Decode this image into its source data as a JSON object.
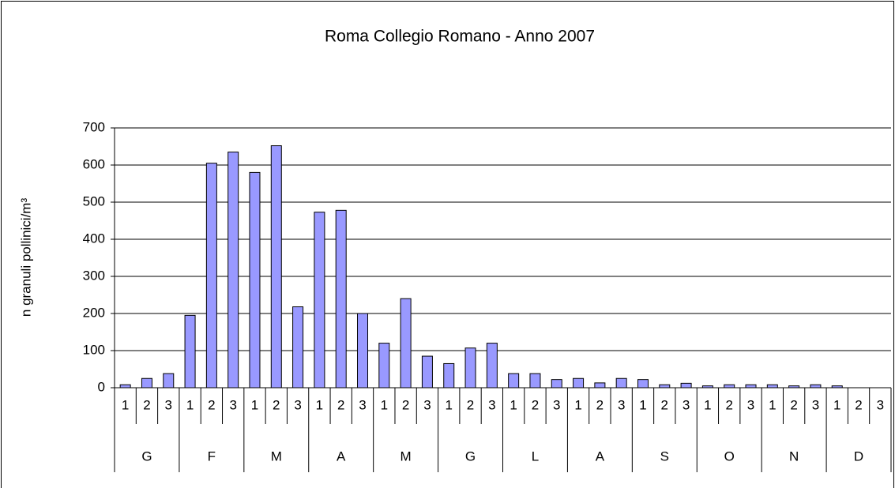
{
  "chart_data": {
    "type": "bar",
    "title": "Roma Collegio Romano - Anno 2007",
    "y_label": "n granuli pollinici/m³",
    "categories": [
      "1",
      "2",
      "3",
      "1",
      "2",
      "3",
      "1",
      "2",
      "3",
      "1",
      "2",
      "3",
      "1",
      "2",
      "3",
      "1",
      "2",
      "3",
      "1",
      "2",
      "3",
      "1",
      "2",
      "3",
      "1",
      "2",
      "3",
      "1",
      "2",
      "3",
      "1",
      "2",
      "3",
      "1",
      "2",
      "3"
    ],
    "groups": [
      "G",
      "F",
      "M",
      "A",
      "M",
      "G",
      "L",
      "A",
      "S",
      "O",
      "N",
      "D"
    ],
    "values": [
      8,
      25,
      38,
      195,
      605,
      635,
      580,
      652,
      218,
      473,
      478,
      200,
      120,
      240,
      85,
      65,
      107,
      120,
      38,
      38,
      22,
      25,
      13,
      25,
      22,
      8,
      12,
      5,
      8,
      8,
      8,
      5,
      8,
      5,
      0,
      0
    ],
    "color": "#9999ff",
    "ylim": [
      0,
      700
    ],
    "yticks": [
      0,
      100,
      200,
      300,
      400,
      500,
      600,
      700
    ],
    "grid": true
  }
}
